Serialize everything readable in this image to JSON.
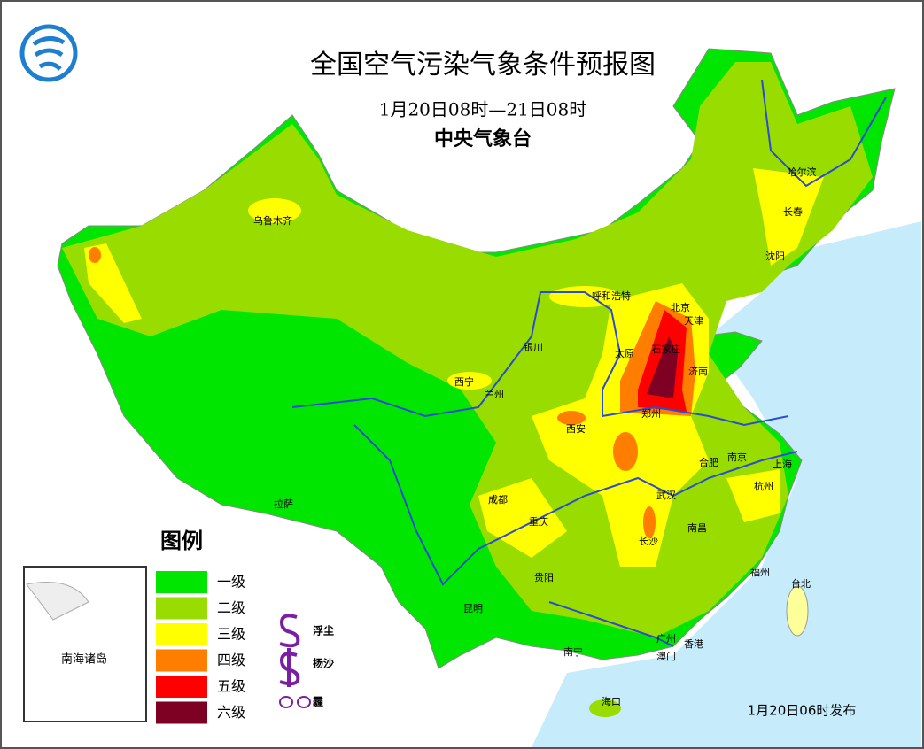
{
  "header": {
    "title": "全国空气污染气象条件预报图",
    "time_range": "1月20日08时—21日08时",
    "issuer": "中央气象台"
  },
  "legend": {
    "title": "图例",
    "levels": [
      {
        "label": "一级",
        "color": "#00e600"
      },
      {
        "label": "二级",
        "color": "#99dd00"
      },
      {
        "label": "三级",
        "color": "#ffff00"
      },
      {
        "label": "四级",
        "color": "#ff7e00"
      },
      {
        "label": "五级",
        "color": "#ff0000"
      },
      {
        "label": "六级",
        "color": "#7e0023"
      }
    ],
    "symbols": [
      "浮尘",
      "扬沙",
      "霾"
    ]
  },
  "cities": [
    "乌鲁木齐",
    "哈尔滨",
    "长春",
    "沈阳",
    "呼和浩特",
    "北京",
    "天津",
    "银川",
    "太原",
    "石家庄",
    "济南",
    "西宁",
    "兰州",
    "郑州",
    "西安",
    "合肥",
    "南京",
    "上海",
    "成都",
    "武汉",
    "杭州",
    "拉萨",
    "重庆",
    "南昌",
    "长沙",
    "福州",
    "贵阳",
    "台北",
    "昆明",
    "南宁",
    "广州",
    "香港",
    "澳门",
    "海口"
  ],
  "inset": {
    "label": "南海诸岛"
  },
  "footer": {
    "release": "1月20日06时发布"
  }
}
